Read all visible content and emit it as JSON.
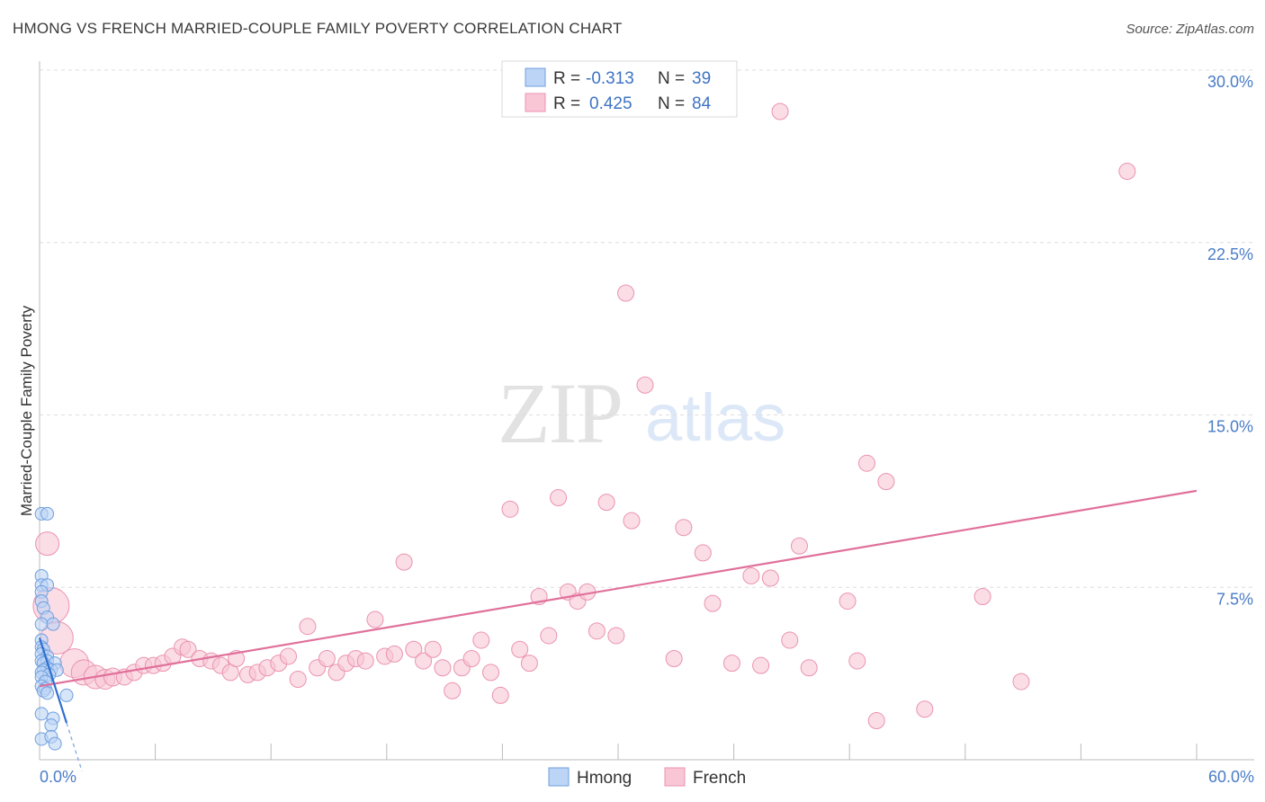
{
  "chart_data": {
    "type": "scatter",
    "title": "HMONG VS FRENCH MARRIED-COUPLE FAMILY POVERTY CORRELATION CHART",
    "source": "Source: ZipAtlas.com",
    "ylabel": "Married-Couple Family Poverty",
    "xlabel": "",
    "xlim": [
      0,
      60
    ],
    "ylim": [
      0,
      30
    ],
    "x_tick_labels": [
      "0.0%",
      "60.0%"
    ],
    "y_ticks": [
      7.5,
      15,
      22.5,
      30
    ],
    "y_tick_labels": [
      "7.5%",
      "15.0%",
      "22.5%",
      "30.0%"
    ],
    "watermark": {
      "part1": "ZIP",
      "part2": "atlas"
    },
    "legend": {
      "placement": "top-center",
      "entries": [
        {
          "r_label": "R =",
          "r_value": "-0.313",
          "n_label": "N =",
          "n_value": "39"
        },
        {
          "r_label": "R =",
          "r_value": "0.425",
          "n_label": "N =",
          "n_value": "84"
        }
      ]
    },
    "bottom_legend": [
      "Hmong",
      "French"
    ],
    "colors": {
      "hmong_fill": "#bcd4f5",
      "hmong_stroke": "#6f9fdf",
      "hmong_line": "#2d6fd1",
      "french_fill": "#f9c6d6",
      "french_stroke": "#ea93b0",
      "french_line": "#e0709a",
      "tick_label": "#4a7cc7",
      "grid": "#dddddd"
    },
    "series": [
      {
        "name": "Hmong",
        "trend": {
          "x": [
            0.0,
            1.4
          ],
          "y": [
            5.3,
            1.6
          ],
          "dash_to": [
            2.2,
            -0.5
          ]
        },
        "points": [
          [
            0.1,
            10.7
          ],
          [
            0.4,
            10.7
          ],
          [
            0.1,
            8.0
          ],
          [
            0.1,
            7.6
          ],
          [
            0.4,
            7.6
          ],
          [
            0.1,
            7.3
          ],
          [
            0.1,
            6.9
          ],
          [
            0.2,
            6.6
          ],
          [
            0.4,
            6.2
          ],
          [
            0.1,
            5.9
          ],
          [
            0.7,
            5.9
          ],
          [
            0.1,
            5.2
          ],
          [
            0.1,
            4.9
          ],
          [
            0.2,
            4.8
          ],
          [
            0.1,
            4.6
          ],
          [
            0.4,
            4.5
          ],
          [
            0.1,
            4.3
          ],
          [
            0.4,
            4.3
          ],
          [
            0.2,
            4.2
          ],
          [
            0.8,
            4.2
          ],
          [
            0.4,
            4.0
          ],
          [
            0.2,
            3.9
          ],
          [
            0.6,
            3.9
          ],
          [
            0.9,
            3.9
          ],
          [
            0.1,
            3.8
          ],
          [
            0.5,
            3.7
          ],
          [
            0.1,
            3.6
          ],
          [
            0.3,
            3.4
          ],
          [
            0.1,
            3.2
          ],
          [
            0.3,
            3.1
          ],
          [
            0.2,
            3.0
          ],
          [
            0.4,
            2.9
          ],
          [
            1.4,
            2.8
          ],
          [
            0.1,
            2.0
          ],
          [
            0.7,
            1.8
          ],
          [
            0.6,
            1.5
          ],
          [
            0.1,
            0.9
          ],
          [
            0.6,
            1.0
          ],
          [
            0.8,
            0.7
          ]
        ]
      },
      {
        "name": "French",
        "trend": {
          "x": [
            0.0,
            60.0
          ],
          "y": [
            3.2,
            11.7
          ]
        },
        "points": [
          [
            0.4,
            9.4,
            13
          ],
          [
            0.6,
            6.7,
            20
          ],
          [
            0.9,
            5.3,
            18
          ],
          [
            1.8,
            4.2,
            16
          ],
          [
            2.3,
            3.8,
            14
          ],
          [
            2.9,
            3.6,
            13
          ],
          [
            3.4,
            3.5,
            11
          ],
          [
            3.8,
            3.6,
            10
          ],
          [
            4.4,
            3.6,
            9
          ],
          [
            4.9,
            3.8,
            9
          ],
          [
            5.4,
            4.1,
            9
          ],
          [
            5.9,
            4.1,
            9
          ],
          [
            6.4,
            4.2,
            9
          ],
          [
            6.9,
            4.5,
            9
          ],
          [
            7.4,
            4.9,
            9
          ],
          [
            7.7,
            4.8,
            9
          ],
          [
            8.3,
            4.4,
            9
          ],
          [
            8.9,
            4.3,
            9
          ],
          [
            9.4,
            4.1,
            9
          ],
          [
            9.9,
            3.8,
            9
          ],
          [
            10.2,
            4.4,
            9
          ],
          [
            10.8,
            3.7,
            9
          ],
          [
            11.3,
            3.8,
            9
          ],
          [
            11.8,
            4.0,
            9
          ],
          [
            12.4,
            4.2,
            9
          ],
          [
            12.9,
            4.5,
            9
          ],
          [
            13.4,
            3.5,
            9
          ],
          [
            13.9,
            5.8,
            9
          ],
          [
            14.4,
            4.0,
            9
          ],
          [
            14.9,
            4.4,
            9
          ],
          [
            15.4,
            3.8,
            9
          ],
          [
            15.9,
            4.2,
            9
          ],
          [
            16.4,
            4.4,
            9
          ],
          [
            16.9,
            4.3,
            9
          ],
          [
            17.4,
            6.1,
            9
          ],
          [
            17.9,
            4.5,
            9
          ],
          [
            18.4,
            4.6,
            9
          ],
          [
            18.9,
            8.6,
            9
          ],
          [
            19.4,
            4.8,
            9
          ],
          [
            19.9,
            4.3,
            9
          ],
          [
            20.4,
            4.8,
            9
          ],
          [
            20.9,
            4.0,
            9
          ],
          [
            21.4,
            3.0,
            9
          ],
          [
            21.9,
            4.0,
            9
          ],
          [
            22.4,
            4.4,
            9
          ],
          [
            22.9,
            5.2,
            9
          ],
          [
            23.4,
            3.8,
            9
          ],
          [
            23.9,
            2.8,
            9
          ],
          [
            24.4,
            10.9,
            9
          ],
          [
            24.9,
            4.8,
            9
          ],
          [
            25.4,
            4.2,
            9
          ],
          [
            25.9,
            7.1,
            9
          ],
          [
            26.4,
            5.4,
            9
          ],
          [
            26.9,
            11.4,
            9
          ],
          [
            27.4,
            7.3,
            9
          ],
          [
            27.9,
            6.9,
            9
          ],
          [
            28.4,
            7.3,
            9
          ],
          [
            28.9,
            5.6,
            9
          ],
          [
            29.4,
            11.2,
            9
          ],
          [
            29.9,
            5.4,
            9
          ],
          [
            30.4,
            20.3,
            9
          ],
          [
            30.7,
            10.4,
            9
          ],
          [
            31.4,
            16.3,
            9
          ],
          [
            32.9,
            4.4,
            9
          ],
          [
            33.4,
            10.1,
            9
          ],
          [
            34.4,
            9.0,
            9
          ],
          [
            34.9,
            6.8,
            9
          ],
          [
            35.9,
            4.2,
            9
          ],
          [
            36.9,
            8.0,
            9
          ],
          [
            37.4,
            4.1,
            9
          ],
          [
            37.9,
            7.9,
            9
          ],
          [
            38.4,
            28.2,
            9
          ],
          [
            38.9,
            5.2,
            9
          ],
          [
            39.4,
            9.3,
            9
          ],
          [
            39.9,
            4.0,
            9
          ],
          [
            41.9,
            6.9,
            9
          ],
          [
            42.4,
            4.3,
            9
          ],
          [
            42.9,
            12.9,
            9
          ],
          [
            43.4,
            1.7,
            9
          ],
          [
            43.9,
            12.1,
            9
          ],
          [
            45.9,
            2.2,
            9
          ],
          [
            48.9,
            7.1,
            9
          ],
          [
            50.9,
            3.4,
            9
          ],
          [
            56.4,
            25.6,
            9
          ]
        ]
      }
    ]
  }
}
